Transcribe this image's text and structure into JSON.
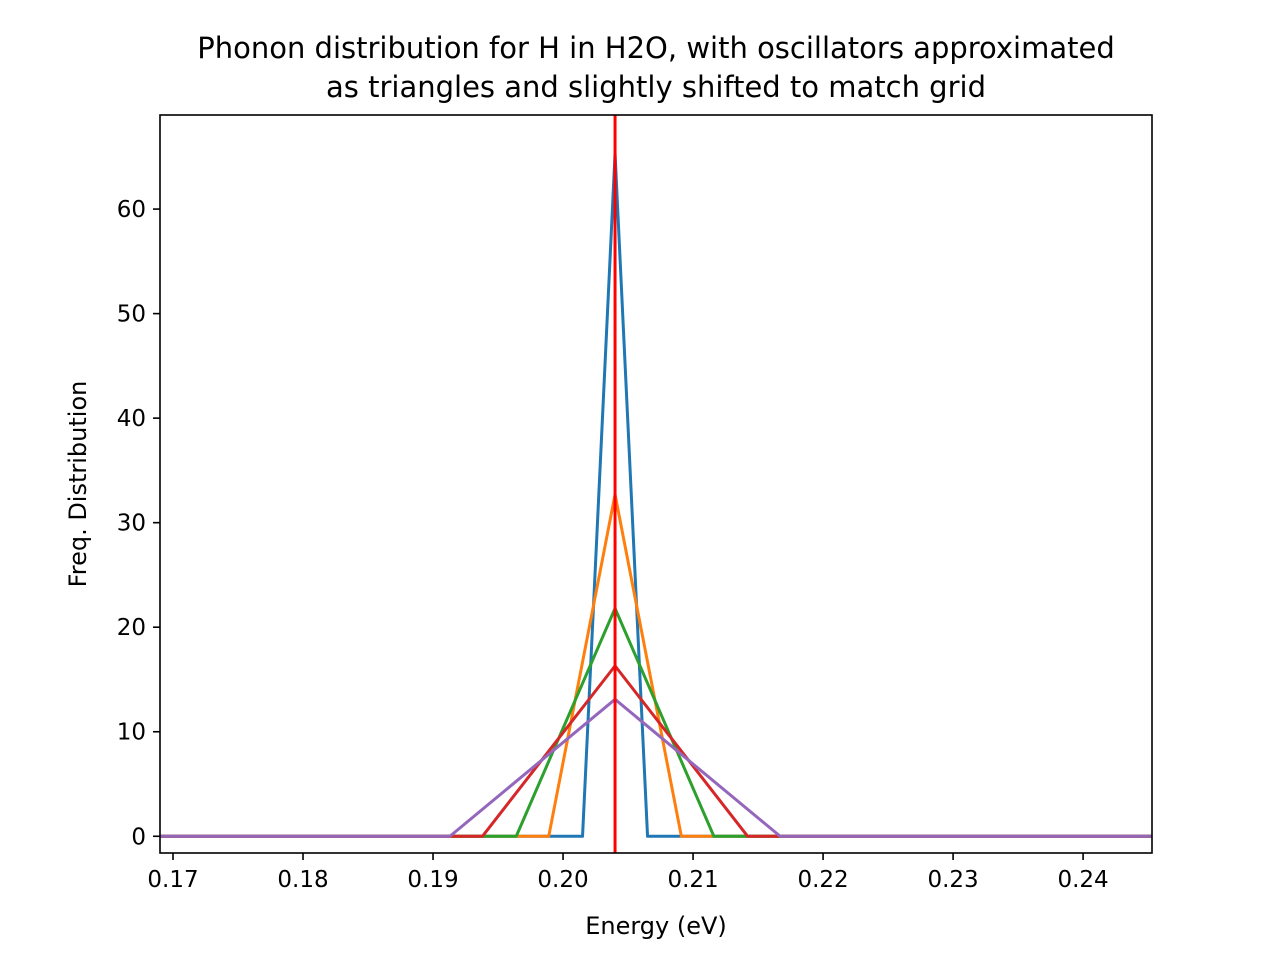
{
  "chart_data": {
    "type": "line",
    "title": "Phonon distribution for H in H2O, with oscillators approximated\nas triangles and slightly shifted to match grid",
    "xlabel": "Energy (eV)",
    "ylabel": "Freq. Distribution",
    "xlim": [
      0.169,
      0.2453
    ],
    "ylim": [
      -1.6,
      69
    ],
    "xticks": [
      "0.17",
      "0.18",
      "0.19",
      "0.20",
      "0.21",
      "0.22",
      "0.23",
      "0.24"
    ],
    "xtick_values": [
      0.17,
      0.18,
      0.19,
      0.2,
      0.21,
      0.22,
      0.23,
      0.24
    ],
    "yticks": [
      "0",
      "10",
      "20",
      "30",
      "40",
      "50",
      "60"
    ],
    "ytick_values": [
      0,
      10,
      20,
      30,
      40,
      50,
      60
    ],
    "grid": false,
    "legend": "none",
    "reference_line": {
      "x": 0.204,
      "color": "#ff0000"
    },
    "series": [
      {
        "color": "#1f77b4",
        "x": [
          0.169,
          0.2015,
          0.204,
          0.2065,
          0.2453
        ],
        "y": [
          0,
          0,
          65.3,
          0,
          0
        ]
      },
      {
        "color": "#ff7f0e",
        "x": [
          0.169,
          0.1989,
          0.204,
          0.2091,
          0.2453
        ],
        "y": [
          0,
          0,
          32.7,
          0,
          0
        ]
      },
      {
        "color": "#2ca02c",
        "x": [
          0.169,
          0.1964,
          0.204,
          0.2116,
          0.2453
        ],
        "y": [
          0,
          0,
          21.8,
          0,
          0
        ]
      },
      {
        "color": "#d62728",
        "x": [
          0.169,
          0.1938,
          0.204,
          0.2142,
          0.2453
        ],
        "y": [
          0,
          0,
          16.3,
          0,
          0
        ]
      },
      {
        "color": "#9467bd",
        "x": [
          0.169,
          0.1913,
          0.204,
          0.2167,
          0.2453
        ],
        "y": [
          0,
          0,
          13.1,
          0,
          0
        ]
      }
    ]
  }
}
